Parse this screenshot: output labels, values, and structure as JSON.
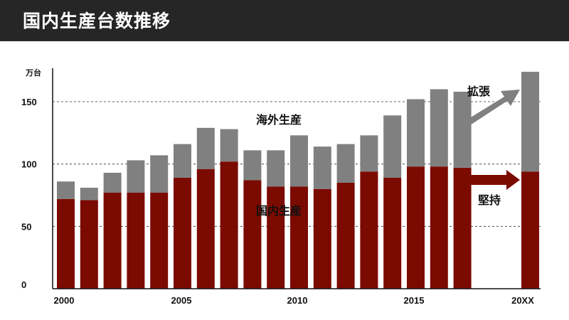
{
  "header": {
    "title": "国内生産台数推移"
  },
  "chart_data": {
    "type": "bar",
    "stacked": true,
    "title": "国内生産台数推移",
    "ylabel": "万台",
    "xlabel": "",
    "ylim": [
      0,
      180
    ],
    "grid": "dashed lines at 50, 100, 150",
    "yticks": [
      "0",
      "50",
      "100",
      "150"
    ],
    "x_tick_labels": [
      "2000",
      "2005",
      "2010",
      "2015",
      "20XX"
    ],
    "categories": [
      "2000",
      "2001",
      "2002",
      "2003",
      "2004",
      "2005",
      "2006",
      "2007",
      "2008",
      "2009",
      "2010",
      "2011",
      "2012",
      "2013",
      "2014",
      "2015",
      "2016",
      "2017",
      "20XX"
    ],
    "series": [
      {
        "name": "国内生産",
        "color": "#7b0a00",
        "values": [
          72,
          71,
          77,
          77,
          77,
          89,
          96,
          102,
          87,
          82,
          82,
          80,
          85,
          94,
          89,
          98,
          98,
          97,
          94
        ]
      },
      {
        "name": "海外生産",
        "color": "#808080",
        "values": [
          14,
          10,
          16,
          26,
          30,
          27,
          33,
          26,
          24,
          29,
          41,
          34,
          31,
          29,
          50,
          54,
          62,
          61,
          80
        ]
      }
    ],
    "annotations": [
      {
        "text": "海外生産",
        "series": "海外生産"
      },
      {
        "text": "国内生産",
        "series": "国内生産"
      },
      {
        "text": "拡張",
        "arrow": "up-right",
        "color": "#808080"
      },
      {
        "text": "堅持",
        "arrow": "right",
        "color": "#7b0a00"
      }
    ]
  }
}
